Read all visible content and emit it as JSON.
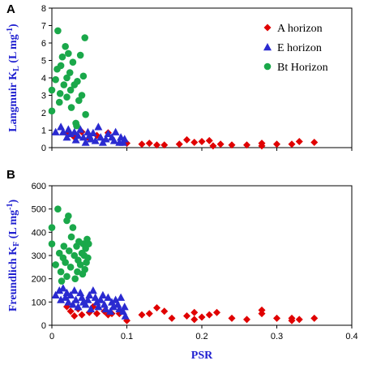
{
  "colors": {
    "A": "#e00000",
    "E": "#2a2ad0",
    "Bt": "#1aa84a",
    "label": "#1f1fd0"
  },
  "chart_data": [
    {
      "type": "scatter",
      "panel_label": "A",
      "ylabel_main": "Langmuir K",
      "ylabel_sub": "L",
      "ylabel_unit_pre": " (L mg",
      "ylabel_unit_sup": "-1",
      "ylabel_unit_post": ")",
      "xlabel": "",
      "xlim": [
        0,
        0.4
      ],
      "ylim": [
        0,
        8
      ],
      "yticks": [
        "0",
        "1",
        "2",
        "3",
        "4",
        "5",
        "6",
        "7",
        "8"
      ],
      "legend_position": "top-right",
      "series": [
        {
          "name": "A horizon",
          "marker": "diamond",
          "color": "#e00000",
          "points": [
            [
              0.02,
              0.8
            ],
            [
              0.03,
              0.6
            ],
            [
              0.04,
              0.9
            ],
            [
              0.05,
              0.5
            ],
            [
              0.06,
              0.7
            ],
            [
              0.075,
              0.85
            ],
            [
              0.1,
              0.25
            ],
            [
              0.12,
              0.2
            ],
            [
              0.13,
              0.25
            ],
            [
              0.14,
              0.15
            ],
            [
              0.15,
              0.15
            ],
            [
              0.17,
              0.2
            ],
            [
              0.18,
              0.45
            ],
            [
              0.19,
              0.3
            ],
            [
              0.2,
              0.35
            ],
            [
              0.21,
              0.4
            ],
            [
              0.215,
              0.1
            ],
            [
              0.225,
              0.2
            ],
            [
              0.24,
              0.15
            ],
            [
              0.26,
              0.15
            ],
            [
              0.28,
              0.1
            ],
            [
              0.28,
              0.25
            ],
            [
              0.3,
              0.2
            ],
            [
              0.32,
              0.2
            ],
            [
              0.33,
              0.35
            ],
            [
              0.35,
              0.3
            ]
          ]
        },
        {
          "name": "E horizon",
          "marker": "triangle",
          "color": "#2a2ad0",
          "points": [
            [
              0.005,
              0.9
            ],
            [
              0.012,
              1.2
            ],
            [
              0.015,
              0.9
            ],
            [
              0.02,
              0.6
            ],
            [
              0.022,
              1.05
            ],
            [
              0.025,
              0.8
            ],
            [
              0.03,
              0.9
            ],
            [
              0.032,
              0.45
            ],
            [
              0.035,
              0.7
            ],
            [
              0.038,
              1.05
            ],
            [
              0.042,
              0.6
            ],
            [
              0.045,
              0.3
            ],
            [
              0.048,
              0.9
            ],
            [
              0.05,
              0.7
            ],
            [
              0.052,
              0.5
            ],
            [
              0.055,
              0.85
            ],
            [
              0.058,
              0.4
            ],
            [
              0.062,
              1.2
            ],
            [
              0.065,
              0.6
            ],
            [
              0.068,
              0.3
            ],
            [
              0.072,
              0.5
            ],
            [
              0.075,
              0.8
            ],
            [
              0.08,
              0.6
            ],
            [
              0.083,
              0.4
            ],
            [
              0.085,
              0.9
            ],
            [
              0.09,
              0.3
            ],
            [
              0.092,
              0.6
            ],
            [
              0.095,
              0.3
            ],
            [
              0.097,
              0.5
            ]
          ]
        },
        {
          "name": "Bt Horizon",
          "marker": "circle",
          "color": "#1aa84a",
          "points": [
            [
              0.0,
              3.3
            ],
            [
              0.0,
              2.1
            ],
            [
              0.005,
              3.9
            ],
            [
              0.007,
              4.5
            ],
            [
              0.008,
              6.7
            ],
            [
              0.01,
              2.6
            ],
            [
              0.011,
              3.1
            ],
            [
              0.012,
              4.7
            ],
            [
              0.014,
              5.2
            ],
            [
              0.016,
              3.6
            ],
            [
              0.018,
              5.8
            ],
            [
              0.02,
              4.0
            ],
            [
              0.02,
              2.9
            ],
            [
              0.022,
              5.4
            ],
            [
              0.024,
              4.3
            ],
            [
              0.025,
              3.3
            ],
            [
              0.026,
              2.3
            ],
            [
              0.028,
              4.9
            ],
            [
              0.03,
              3.6
            ],
            [
              0.032,
              1.4
            ],
            [
              0.033,
              1.25
            ],
            [
              0.034,
              3.8
            ],
            [
              0.036,
              2.7
            ],
            [
              0.038,
              5.3
            ],
            [
              0.04,
              3.0
            ],
            [
              0.042,
              4.1
            ],
            [
              0.044,
              6.3
            ],
            [
              0.045,
              1.9
            ]
          ]
        }
      ]
    },
    {
      "type": "scatter",
      "panel_label": "B",
      "ylabel_main": "Freundlich K",
      "ylabel_sub": "F",
      "ylabel_unit_pre": " (L mg",
      "ylabel_unit_sup": "-1",
      "ylabel_unit_post": ")",
      "xlabel": "PSR",
      "xlim": [
        0,
        0.4
      ],
      "ylim": [
        0,
        600
      ],
      "yticks": [
        "0",
        "100",
        "200",
        "300",
        "400",
        "500",
        "600"
      ],
      "xticks": [
        "0",
        "0.1",
        "0.2",
        "0.3",
        "0.4"
      ],
      "series": [
        {
          "name": "A horizon",
          "marker": "diamond",
          "color": "#e00000",
          "points": [
            [
              0.02,
              80
            ],
            [
              0.025,
              60
            ],
            [
              0.03,
              40
            ],
            [
              0.035,
              70
            ],
            [
              0.04,
              45
            ],
            [
              0.05,
              55
            ],
            [
              0.055,
              80
            ],
            [
              0.06,
              50
            ],
            [
              0.07,
              60
            ],
            [
              0.075,
              45
            ],
            [
              0.08,
              50
            ],
            [
              0.09,
              50
            ],
            [
              0.1,
              20
            ],
            [
              0.12,
              45
            ],
            [
              0.13,
              50
            ],
            [
              0.14,
              75
            ],
            [
              0.15,
              60
            ],
            [
              0.16,
              30
            ],
            [
              0.18,
              40
            ],
            [
              0.19,
              55
            ],
            [
              0.19,
              25
            ],
            [
              0.2,
              35
            ],
            [
              0.21,
              45
            ],
            [
              0.22,
              55
            ],
            [
              0.24,
              30
            ],
            [
              0.26,
              25
            ],
            [
              0.28,
              65
            ],
            [
              0.28,
              50
            ],
            [
              0.3,
              30
            ],
            [
              0.32,
              20
            ],
            [
              0.32,
              30
            ],
            [
              0.33,
              25
            ],
            [
              0.35,
              30
            ]
          ]
        },
        {
          "name": "E horizon",
          "marker": "triangle",
          "color": "#2a2ad0",
          "points": [
            [
              0.005,
              130
            ],
            [
              0.01,
              150
            ],
            [
              0.012,
              110
            ],
            [
              0.015,
              160
            ],
            [
              0.018,
              120
            ],
            [
              0.02,
              140
            ],
            [
              0.022,
              100
            ],
            [
              0.025,
              130
            ],
            [
              0.028,
              90
            ],
            [
              0.03,
              150
            ],
            [
              0.032,
              110
            ],
            [
              0.035,
              80
            ],
            [
              0.038,
              140
            ],
            [
              0.04,
              120
            ],
            [
              0.042,
              100
            ],
            [
              0.045,
              90
            ],
            [
              0.048,
              110
            ],
            [
              0.05,
              130
            ],
            [
              0.052,
              70
            ],
            [
              0.055,
              150
            ],
            [
              0.058,
              120
            ],
            [
              0.06,
              100
            ],
            [
              0.062,
              80
            ],
            [
              0.065,
              110
            ],
            [
              0.068,
              130
            ],
            [
              0.07,
              90
            ],
            [
              0.072,
              70
            ],
            [
              0.075,
              120
            ],
            [
              0.078,
              60
            ],
            [
              0.08,
              100
            ],
            [
              0.082,
              80
            ],
            [
              0.085,
              110
            ],
            [
              0.088,
              90
            ],
            [
              0.09,
              70
            ],
            [
              0.092,
              120
            ],
            [
              0.095,
              60
            ],
            [
              0.097,
              80
            ],
            [
              0.098,
              40
            ]
          ]
        },
        {
          "name": "Bt Horizon",
          "marker": "circle",
          "color": "#1aa84a",
          "points": [
            [
              0.0,
              420
            ],
            [
              0.0,
              350
            ],
            [
              0.005,
              260
            ],
            [
              0.008,
              500
            ],
            [
              0.01,
              310
            ],
            [
              0.012,
              230
            ],
            [
              0.013,
              190
            ],
            [
              0.015,
              290
            ],
            [
              0.016,
              340
            ],
            [
              0.018,
              270
            ],
            [
              0.02,
              450
            ],
            [
              0.02,
              210
            ],
            [
              0.022,
              470
            ],
            [
              0.023,
              320
            ],
            [
              0.025,
              250
            ],
            [
              0.026,
              380
            ],
            [
              0.028,
              420
            ],
            [
              0.03,
              300
            ],
            [
              0.031,
              200
            ],
            [
              0.033,
              340
            ],
            [
              0.034,
              230
            ],
            [
              0.035,
              280
            ],
            [
              0.036,
              360
            ],
            [
              0.038,
              260
            ],
            [
              0.04,
              310
            ],
            [
              0.041,
              220
            ],
            [
              0.042,
              350
            ],
            [
              0.043,
              300
            ],
            [
              0.044,
              240
            ],
            [
              0.045,
              330
            ],
            [
              0.046,
              270
            ],
            [
              0.047,
              370
            ],
            [
              0.048,
              290
            ],
            [
              0.049,
              350
            ]
          ]
        }
      ]
    }
  ]
}
